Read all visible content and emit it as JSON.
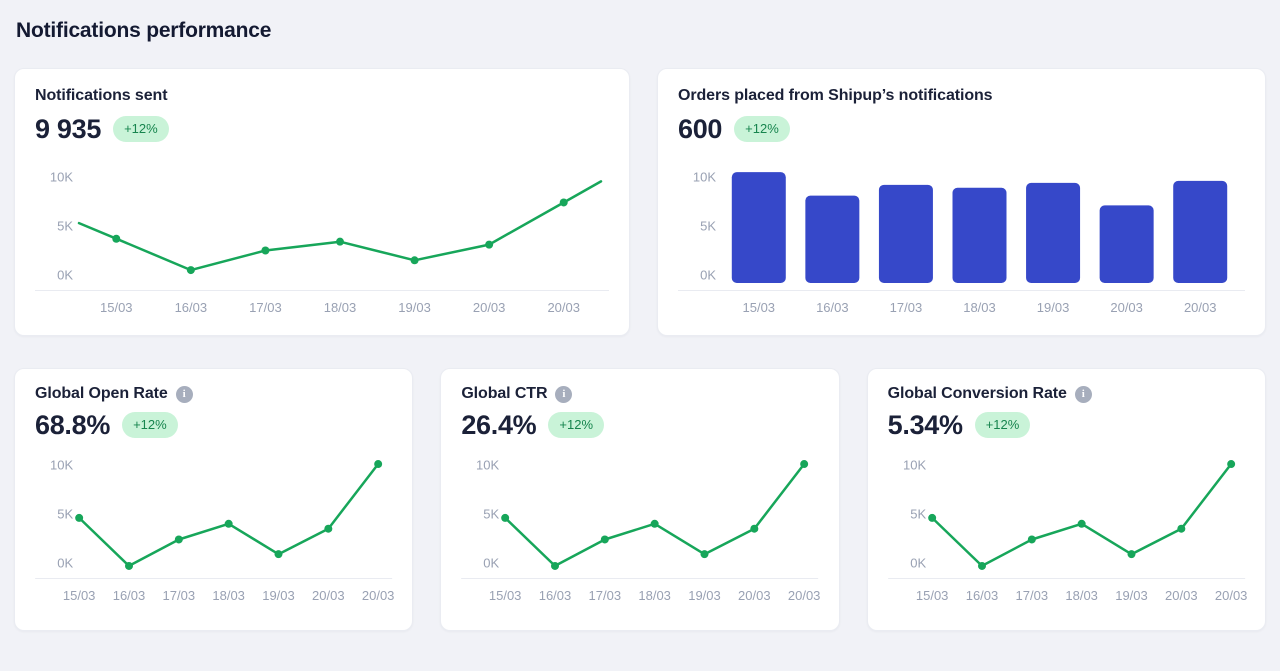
{
  "page": {
    "title": "Notifications performance"
  },
  "colors": {
    "background": "#f1f2f7",
    "card_background": "#ffffff",
    "card_border": "#eaecf2",
    "heading_text": "#141a32",
    "value_text": "#1b2138",
    "badge_background": "#c9f3d8",
    "badge_text": "#17854e",
    "line_green": "#17a65a",
    "bar_blue": "#3648c9",
    "axis_label": "#99a1b3",
    "axis_line": "#e9ebf1"
  },
  "cards": [
    {
      "title": "Notifications sent",
      "value": "9 935",
      "delta": "+12%",
      "info_icon": false
    },
    {
      "title": "Orders placed from Shipup’s notifications",
      "value": "600",
      "delta": "+12%",
      "info_icon": false
    },
    {
      "title": "Global Open Rate",
      "value": "68.8%",
      "delta": "+12%",
      "info_icon": true
    },
    {
      "title": "Global CTR",
      "value": "26.4%",
      "delta": "+12%",
      "info_icon": true
    },
    {
      "title": "Global Conversion Rate",
      "value": "5.34%",
      "delta": "+12%",
      "info_icon": true
    }
  ],
  "chart_data": [
    {
      "card": "Notifications sent",
      "type": "line",
      "categories": [
        "15/03",
        "16/03",
        "17/03",
        "18/03",
        "19/03",
        "20/03",
        "20/03"
      ],
      "values": [
        3.7,
        0.5,
        2.5,
        3.4,
        1.5,
        3.1,
        7.4
      ],
      "unit": "K",
      "yticks": [
        "0K",
        "5K",
        "10K"
      ],
      "ylim": [
        0,
        10
      ],
      "grid": false,
      "legend": false,
      "extend_line": true,
      "color": "#17a65a"
    },
    {
      "card": "Orders placed from Shipup’s notifications",
      "type": "bar",
      "categories": [
        "15/03",
        "16/03",
        "17/03",
        "18/03",
        "19/03",
        "20/03",
        "20/03"
      ],
      "values": [
        10.5,
        8.1,
        9.2,
        8.9,
        9.4,
        7.1,
        9.6
      ],
      "unit": "K",
      "yticks": [
        "0K",
        "5K",
        "10K"
      ],
      "ylim": [
        0,
        10
      ],
      "grid": false,
      "legend": false,
      "color": "#3648c9"
    },
    {
      "card": "Global Open Rate",
      "type": "line",
      "categories": [
        "15/03",
        "16/03",
        "17/03",
        "18/03",
        "19/03",
        "20/03",
        "20/03"
      ],
      "values": [
        4.6,
        -0.3,
        2.4,
        4.0,
        0.9,
        3.5,
        10.1
      ],
      "unit": "K",
      "yticks": [
        "0K",
        "5K",
        "10K"
      ],
      "ylim": [
        0,
        10
      ],
      "grid": false,
      "legend": false,
      "extend_line": false,
      "color": "#17a65a"
    },
    {
      "card": "Global CTR",
      "type": "line",
      "categories": [
        "15/03",
        "16/03",
        "17/03",
        "18/03",
        "19/03",
        "20/03",
        "20/03"
      ],
      "values": [
        4.6,
        -0.3,
        2.4,
        4.0,
        0.9,
        3.5,
        10.1
      ],
      "unit": "K",
      "yticks": [
        "0K",
        "5K",
        "10K"
      ],
      "ylim": [
        0,
        10
      ],
      "grid": false,
      "legend": false,
      "extend_line": false,
      "color": "#17a65a"
    },
    {
      "card": "Global Conversion Rate",
      "type": "line",
      "categories": [
        "15/03",
        "16/03",
        "17/03",
        "18/03",
        "19/03",
        "20/03",
        "20/03"
      ],
      "values": [
        4.6,
        -0.3,
        2.4,
        4.0,
        0.9,
        3.5,
        10.1
      ],
      "unit": "K",
      "yticks": [
        "0K",
        "5K",
        "10K"
      ],
      "ylim": [
        0,
        10
      ],
      "grid": false,
      "legend": false,
      "extend_line": false,
      "color": "#17a65a"
    }
  ]
}
